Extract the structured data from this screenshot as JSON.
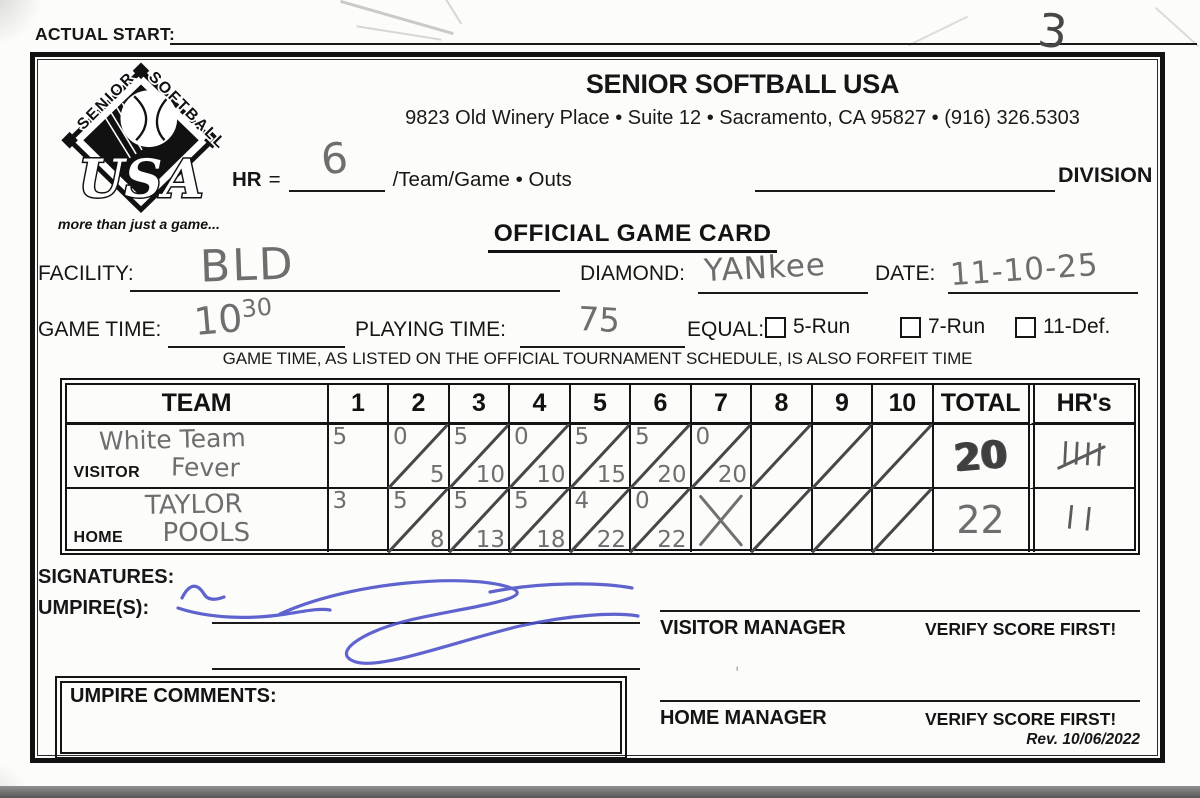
{
  "page": {
    "actual_start_label": "ACTUAL START:",
    "actual_start_value": "",
    "handwritten_page_number": "3"
  },
  "logo": {
    "arc_top_left": "SENIOR",
    "arc_top_right": "SOFTBALL",
    "center": "USA",
    "tagline": "more than just a game..."
  },
  "header": {
    "org_name": "SENIOR SOFTBALL USA",
    "address_line": "9823 Old Winery Place • Suite 12 • Sacramento, CA 95827 • (916) 326.5303",
    "hr_label": "HR",
    "hr_equals": "=",
    "hr_value": "6",
    "hr_suffix": "/Team/Game • Outs",
    "division_label": "DIVISION",
    "division_value": ""
  },
  "title": "OFFICIAL GAME CARD",
  "details": {
    "facility_label": "FACILITY:",
    "facility_value": "BLD",
    "diamond_label": "DIAMOND:",
    "diamond_value": "YANkee",
    "date_label": "DATE:",
    "date_value": "11-10-25",
    "game_time_label": "GAME TIME:",
    "game_time_value": "10",
    "game_time_superscript": "30",
    "playing_time_label": "PLAYING TIME:",
    "playing_time_value": "75",
    "equal_label": "EQUAL:",
    "equal_options": [
      {
        "label": "5-Run",
        "checked": false
      },
      {
        "label": "7-Run",
        "checked": false
      },
      {
        "label": "11-Def.",
        "checked": false
      }
    ],
    "forfeit_note": "GAME TIME, AS LISTED ON THE OFFICIAL TOURNAMENT SCHEDULE, IS ALSO FORFEIT TIME"
  },
  "scoreboard": {
    "team_header": "TEAM",
    "inning_headers": [
      "1",
      "2",
      "3",
      "4",
      "5",
      "6",
      "7",
      "8",
      "9",
      "10"
    ],
    "total_header": "TOTAL",
    "hrs_header": "HR's",
    "rows": [
      {
        "role_label": "VISITOR",
        "team_name_line1": "White Team",
        "team_name_line2": "Fever",
        "innings": [
          {
            "top": "5",
            "bottom": "",
            "mark": "none"
          },
          {
            "top": "0",
            "bottom": "5",
            "mark": "slash"
          },
          {
            "top": "5",
            "bottom": "10",
            "mark": "slash"
          },
          {
            "top": "0",
            "bottom": "10",
            "mark": "slash"
          },
          {
            "top": "5",
            "bottom": "15",
            "mark": "slash"
          },
          {
            "top": "5",
            "bottom": "20",
            "mark": "slash"
          },
          {
            "top": "0",
            "bottom": "20",
            "mark": "slash"
          },
          {
            "top": "",
            "bottom": "",
            "mark": "slash"
          },
          {
            "top": "",
            "bottom": "",
            "mark": "slash"
          },
          {
            "top": "",
            "bottom": "",
            "mark": "slash"
          }
        ],
        "total": "20",
        "total_overwritten": true,
        "hrs": {
          "display": "llll",
          "strike": true,
          "tally_value": 5
        }
      },
      {
        "role_label": "HOME",
        "team_name_line1": "TAYLOR",
        "team_name_line2": "POOLS",
        "innings": [
          {
            "top": "3",
            "bottom": "",
            "mark": "none"
          },
          {
            "top": "5",
            "bottom": "8",
            "mark": "slash"
          },
          {
            "top": "5",
            "bottom": "13",
            "mark": "slash"
          },
          {
            "top": "5",
            "bottom": "18",
            "mark": "slash"
          },
          {
            "top": "4",
            "bottom": "22",
            "mark": "slash"
          },
          {
            "top": "0",
            "bottom": "22",
            "mark": "slash"
          },
          {
            "top": "",
            "bottom": "",
            "mark": "x"
          },
          {
            "top": "",
            "bottom": "",
            "mark": "slash"
          },
          {
            "top": "",
            "bottom": "",
            "mark": "slash"
          },
          {
            "top": "",
            "bottom": "",
            "mark": "slash"
          }
        ],
        "total": "22",
        "total_overwritten": false,
        "hrs": {
          "display": "ll",
          "strike": false,
          "tally_value": 2
        }
      }
    ]
  },
  "signatures": {
    "signatures_label": "SIGNATURES:",
    "umpires_label": "UMPIRE(S):",
    "umpire_signature_present": true
  },
  "managers": {
    "visitor_label": "VISITOR MANAGER",
    "visitor_note": "VERIFY SCORE FIRST!",
    "home_label": "HOME MANAGER",
    "home_note": "VERIFY SCORE FIRST!"
  },
  "umpire_comments": {
    "label": "UMPIRE COMMENTS:",
    "value": ""
  },
  "footer": {
    "revision": "Rev. 10/06/2022"
  },
  "colors": {
    "ink": "#161616",
    "pencil": "#6e6e6e",
    "pen_blue": "#4a4fc9",
    "paper": "#fcfcfa"
  }
}
